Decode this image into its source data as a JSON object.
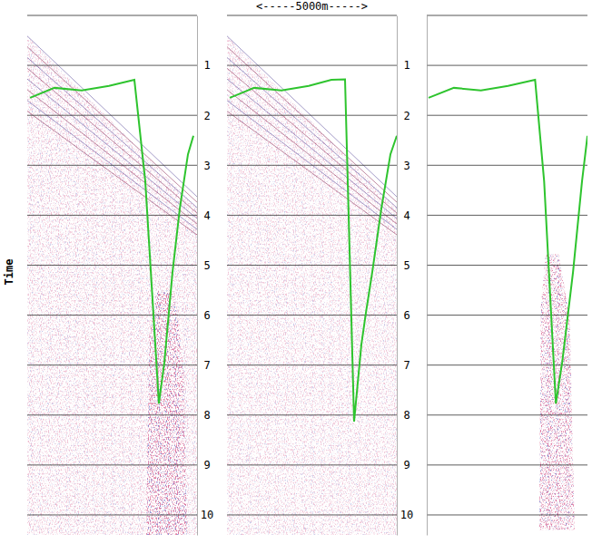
{
  "chart_data": [
    {
      "type": "line",
      "title": "<-----5000m----->",
      "y_label": "Time",
      "x": [
        80,
        802,
        1604,
        2406,
        3155,
        3476,
        3877,
        4037,
        4278,
        4492,
        4733,
        4893
      ],
      "series": [
        {
          "color": "#2ec42e",
          "values": [
            1.65,
            1.45,
            1.5,
            1.41,
            1.29,
            3.32,
            7.77,
            6.95,
            5.14,
            3.87,
            2.78,
            2.41
          ]
        }
      ],
      "xlim": [
        0,
        5000
      ],
      "ylim": [
        0,
        10.4
      ],
      "yticks": [
        1,
        2,
        3,
        4,
        5,
        6,
        7,
        8,
        9,
        10
      ],
      "grid": true,
      "tick_labels": "y"
    },
    {
      "type": "line",
      "x": [
        80,
        802,
        1604,
        2406,
        3075,
        3476,
        3743,
        3957,
        4091,
        4278,
        4545,
        4813,
        5000
      ],
      "series": [
        {
          "color": "#2ec42e",
          "values": [
            1.65,
            1.45,
            1.5,
            1.41,
            1.29,
            1.28,
            8.13,
            6.59,
            5.95,
            5.14,
            3.87,
            2.78,
            2.41
          ]
        }
      ],
      "xlim": [
        0,
        5000
      ],
      "ylim": [
        0,
        10.4
      ],
      "yticks": [
        1,
        2,
        3,
        4,
        5,
        6,
        7,
        8,
        9,
        10
      ],
      "grid": true,
      "tick_labels": "y"
    },
    {
      "type": "line",
      "x": [
        56,
        843,
        1685,
        2528,
        3371,
        3652,
        4017,
        4213,
        4551,
        4831,
        5000
      ],
      "series": [
        {
          "color": "#2ec42e",
          "values": [
            1.65,
            1.45,
            1.5,
            1.41,
            1.29,
            3.32,
            7.77,
            6.95,
            5.14,
            3.32,
            2.41
          ]
        }
      ],
      "xlim": [
        0,
        5000
      ],
      "ylim": [
        0,
        10.4
      ],
      "yticks": [
        1,
        2,
        3,
        4,
        5,
        6,
        7,
        8,
        9,
        10
      ],
      "grid": true,
      "tick_labels": false
    }
  ]
}
